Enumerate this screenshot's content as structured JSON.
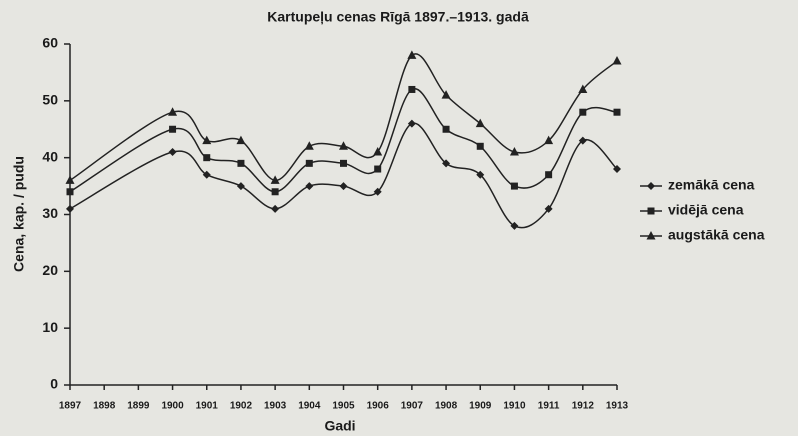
{
  "chart_data": {
    "type": "line",
    "title": "Kartupeļu cenas Rīgā 1897.–1913. gadā",
    "xlabel": "Gadi",
    "ylabel": "Cena, kap. / pudu",
    "x": [
      1897,
      1900,
      1901,
      1902,
      1903,
      1904,
      1905,
      1906,
      1907,
      1908,
      1909,
      1910,
      1911,
      1912,
      1913
    ],
    "xlim": [
      1897,
      1913
    ],
    "xticks": [
      1897,
      1898,
      1899,
      1900,
      1901,
      1902,
      1903,
      1904,
      1905,
      1906,
      1907,
      1908,
      1909,
      1910,
      1911,
      1912,
      1913
    ],
    "ylim": [
      0,
      60
    ],
    "yticks": [
      0,
      10,
      20,
      30,
      40,
      50,
      60
    ],
    "legend": "right",
    "series": [
      {
        "name": "zemākā cena",
        "color": "#222222",
        "marker": "diamond",
        "values": [
          31,
          41,
          37,
          35,
          31,
          35,
          35,
          34,
          46,
          39,
          37,
          28,
          31,
          43,
          38
        ]
      },
      {
        "name": "vidējā cena",
        "color": "#222222",
        "marker": "square",
        "values": [
          34,
          45,
          40,
          39,
          34,
          39,
          39,
          38,
          52,
          45,
          42,
          35,
          37,
          48,
          48
        ]
      },
      {
        "name": "augstākā cena",
        "color": "#222222",
        "marker": "triangle",
        "values": [
          36,
          48,
          43,
          43,
          36,
          42,
          42,
          41,
          58,
          51,
          46,
          41,
          43,
          52,
          57
        ]
      }
    ]
  }
}
